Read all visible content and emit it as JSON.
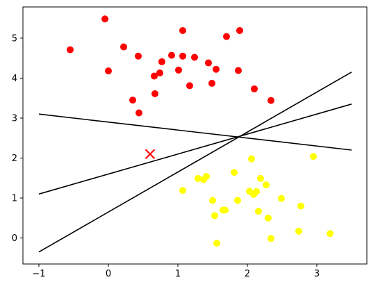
{
  "chart_data": {
    "type": "scatter",
    "title": "",
    "xlabel": "",
    "ylabel": "",
    "xlim": [
      -1.23,
      3.72
    ],
    "ylim": [
      -0.65,
      5.78
    ],
    "grid": false,
    "legend": "none",
    "x_ticks": [
      {
        "value": -1,
        "label": "−1"
      },
      {
        "value": 0,
        "label": "0"
      },
      {
        "value": 1,
        "label": "1"
      },
      {
        "value": 2,
        "label": "2"
      },
      {
        "value": 3,
        "label": "3"
      }
    ],
    "y_ticks": [
      {
        "value": 0,
        "label": "0"
      },
      {
        "value": 1,
        "label": "1"
      },
      {
        "value": 2,
        "label": "2"
      },
      {
        "value": 3,
        "label": "3"
      },
      {
        "value": 4,
        "label": "4"
      },
      {
        "value": 5,
        "label": "5"
      }
    ],
    "series": [
      {
        "color": "#ff0000",
        "points": [
          [
            -0.55,
            4.71
          ],
          [
            -0.05,
            5.48
          ],
          [
            0.0,
            4.18
          ],
          [
            0.22,
            4.78
          ],
          [
            0.35,
            3.45
          ],
          [
            0.43,
            4.55
          ],
          [
            0.44,
            3.13
          ],
          [
            0.66,
            4.05
          ],
          [
            0.67,
            3.61
          ],
          [
            0.74,
            4.13
          ],
          [
            0.77,
            4.41
          ],
          [
            0.91,
            4.57
          ],
          [
            1.01,
            4.2
          ],
          [
            1.07,
            5.19
          ],
          [
            1.07,
            4.55
          ],
          [
            1.17,
            3.81
          ],
          [
            1.24,
            4.52
          ],
          [
            1.44,
            4.38
          ],
          [
            1.49,
            3.87
          ],
          [
            1.55,
            4.22
          ],
          [
            1.7,
            5.04
          ],
          [
            1.87,
            4.19
          ],
          [
            1.89,
            5.19
          ],
          [
            2.1,
            3.73
          ],
          [
            2.34,
            3.44
          ]
        ]
      },
      {
        "color": "#ffff00",
        "points": [
          [
            1.07,
            1.19
          ],
          [
            1.29,
            1.49
          ],
          [
            1.37,
            1.46
          ],
          [
            1.41,
            1.54
          ],
          [
            1.5,
            0.94
          ],
          [
            1.53,
            0.56
          ],
          [
            1.56,
            -0.13
          ],
          [
            1.65,
            0.7
          ],
          [
            1.68,
            0.7
          ],
          [
            1.81,
            1.64
          ],
          [
            1.86,
            0.94
          ],
          [
            2.03,
            1.17
          ],
          [
            2.06,
            1.98
          ],
          [
            2.09,
            1.09
          ],
          [
            2.13,
            1.16
          ],
          [
            2.16,
            0.67
          ],
          [
            2.19,
            1.49
          ],
          [
            2.27,
            1.33
          ],
          [
            2.3,
            0.5
          ],
          [
            2.34,
            -0.01
          ],
          [
            2.49,
            0.99
          ],
          [
            2.74,
            0.17
          ],
          [
            2.77,
            0.8
          ],
          [
            2.95,
            2.04
          ],
          [
            3.19,
            0.11
          ]
        ]
      }
    ],
    "marker": {
      "x": 0.6,
      "y": 2.1,
      "color": "#ff0000",
      "symbol": "x"
    },
    "lines": [
      {
        "x": [
          -1,
          3.5
        ],
        "y": [
          3.1,
          2.2
        ],
        "color": "#000000"
      },
      {
        "x": [
          -1,
          3.5
        ],
        "y": [
          1.1,
          3.35
        ],
        "color": "#000000"
      },
      {
        "x": [
          -1,
          3.5
        ],
        "y": [
          -0.35,
          4.15
        ],
        "color": "#000000"
      }
    ]
  }
}
